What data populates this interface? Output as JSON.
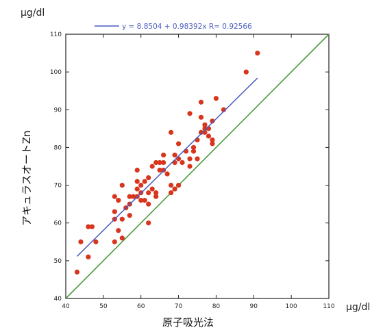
{
  "chart_data": {
    "type": "scatter",
    "xlabel": "原子吸光法",
    "ylabel": "アキュラスオートZn",
    "y_unit": "μg/dl",
    "x_unit": "μg/dl",
    "xlim": [
      40,
      110
    ],
    "ylim": [
      40,
      110
    ],
    "x_ticks": [
      40,
      50,
      60,
      70,
      80,
      90,
      100,
      110
    ],
    "y_ticks": [
      40,
      50,
      60,
      70,
      80,
      90,
      100,
      110
    ],
    "grid": false,
    "legend": {
      "position": "top",
      "text": "y = 8.8504 + 0.98392x   R= 0.92566"
    },
    "regression": {
      "intercept": 8.8504,
      "slope": 0.98392,
      "r": 0.92566,
      "x_range": [
        43,
        91
      ],
      "color": "#4a5bbf"
    },
    "identity_line": {
      "x_range": [
        40,
        110
      ],
      "color": "#4a9a3c"
    },
    "point_color": "#d9341c",
    "points": [
      [
        43,
        47
      ],
      [
        44,
        55
      ],
      [
        46,
        59
      ],
      [
        46,
        51
      ],
      [
        47,
        59
      ],
      [
        48,
        55
      ],
      [
        53,
        55
      ],
      [
        53,
        61
      ],
      [
        53,
        63
      ],
      [
        53,
        67
      ],
      [
        54,
        58
      ],
      [
        54,
        66
      ],
      [
        55,
        56
      ],
      [
        55,
        70
      ],
      [
        55,
        61
      ],
      [
        56,
        64
      ],
      [
        57,
        67
      ],
      [
        57,
        65
      ],
      [
        57,
        62
      ],
      [
        58,
        67
      ],
      [
        59,
        67
      ],
      [
        59,
        71
      ],
      [
        59,
        74
      ],
      [
        59,
        69
      ],
      [
        60,
        66
      ],
      [
        60,
        68
      ],
      [
        60,
        70
      ],
      [
        61,
        71
      ],
      [
        61,
        66
      ],
      [
        62,
        60
      ],
      [
        62,
        65
      ],
      [
        62,
        68
      ],
      [
        62,
        72
      ],
      [
        63,
        69
      ],
      [
        63,
        75
      ],
      [
        64,
        76
      ],
      [
        64,
        67
      ],
      [
        64,
        68
      ],
      [
        65,
        76
      ],
      [
        65,
        74
      ],
      [
        66,
        78
      ],
      [
        66,
        74
      ],
      [
        66,
        76
      ],
      [
        67,
        73
      ],
      [
        68,
        84
      ],
      [
        68,
        68
      ],
      [
        68,
        70
      ],
      [
        69,
        69
      ],
      [
        69,
        78
      ],
      [
        69,
        76
      ],
      [
        70,
        77
      ],
      [
        70,
        81
      ],
      [
        70,
        70
      ],
      [
        71,
        76
      ],
      [
        72,
        79
      ],
      [
        73,
        89
      ],
      [
        73,
        75
      ],
      [
        73,
        77
      ],
      [
        74,
        79
      ],
      [
        74,
        80
      ],
      [
        75,
        82
      ],
      [
        75,
        77
      ],
      [
        76,
        84
      ],
      [
        76,
        92
      ],
      [
        76,
        88
      ],
      [
        77,
        84
      ],
      [
        77,
        85
      ],
      [
        77,
        86
      ],
      [
        78,
        85
      ],
      [
        78,
        83
      ],
      [
        79,
        87
      ],
      [
        79,
        82
      ],
      [
        79,
        81
      ],
      [
        80,
        93
      ],
      [
        82,
        90
      ],
      [
        88,
        100
      ],
      [
        91,
        105
      ]
    ]
  }
}
